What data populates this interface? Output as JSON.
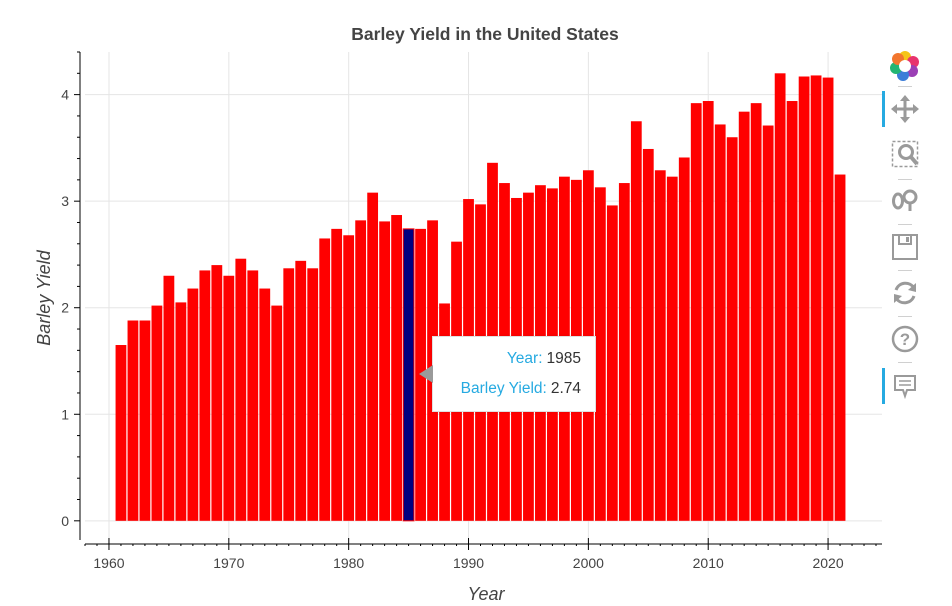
{
  "chart_data": {
    "type": "bar",
    "title": "Barley Yield in the United States",
    "xlabel": "Year",
    "ylabel": "Barley Yield",
    "xlim": [
      1958,
      2024.5
    ],
    "ylim": [
      -0.18,
      4.4
    ],
    "xticks": [
      1960,
      1970,
      1980,
      1990,
      2000,
      2010,
      2020
    ],
    "yticks": [
      0,
      1,
      2,
      3,
      4
    ],
    "grid": true,
    "bar_color": "#ff0000",
    "highlight_color": "#000080",
    "years": [
      1961,
      1962,
      1963,
      1964,
      1965,
      1966,
      1967,
      1968,
      1969,
      1970,
      1971,
      1972,
      1973,
      1974,
      1975,
      1976,
      1977,
      1978,
      1979,
      1980,
      1981,
      1982,
      1983,
      1984,
      1985,
      1986,
      1987,
      1988,
      1989,
      1990,
      1991,
      1992,
      1993,
      1994,
      1995,
      1996,
      1997,
      1998,
      1999,
      2000,
      2001,
      2002,
      2003,
      2004,
      2005,
      2006,
      2007,
      2008,
      2009,
      2010,
      2011,
      2012,
      2013,
      2014,
      2015,
      2016,
      2017,
      2018,
      2019,
      2020,
      2021
    ],
    "values": [
      1.65,
      1.88,
      1.88,
      2.02,
      2.3,
      2.05,
      2.18,
      2.35,
      2.4,
      2.3,
      2.46,
      2.35,
      2.18,
      2.02,
      2.37,
      2.44,
      2.37,
      2.65,
      2.74,
      2.68,
      2.82,
      3.08,
      2.81,
      2.87,
      2.74,
      2.74,
      2.82,
      2.04,
      2.62,
      3.02,
      2.97,
      3.36,
      3.17,
      3.03,
      3.08,
      3.15,
      3.12,
      3.23,
      3.2,
      3.29,
      3.13,
      2.96,
      3.17,
      3.75,
      3.49,
      3.29,
      3.23,
      3.41,
      3.92,
      3.94,
      3.72,
      3.6,
      3.84,
      3.92,
      3.71,
      4.2,
      3.94,
      4.17,
      4.18,
      4.16,
      3.25
    ],
    "highlighted_year": 1985
  },
  "tooltip": {
    "year_key": "Year:",
    "year_value": "1985",
    "yield_key": "Barley Yield:",
    "yield_value": "2.74"
  },
  "toolbar": {
    "accent_color": "#26aae1",
    "tools": [
      "bokeh-logo-icon",
      "pan-icon",
      "box-zoom-icon",
      "wheel-zoom-icon",
      "save-icon",
      "reset-icon",
      "help-icon",
      "hover-icon"
    ]
  }
}
